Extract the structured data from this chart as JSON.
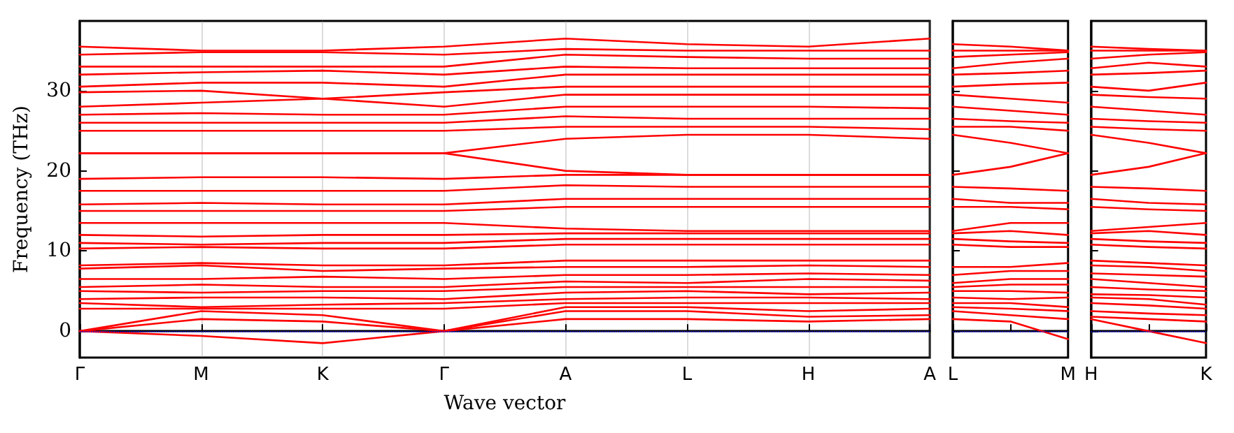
{
  "chart_data": [
    {
      "type": "line",
      "xlabel": "Wave vector",
      "ylabel": "Frequency (THz)",
      "color": "#ff0000",
      "marker": "none",
      "line_style": "solid",
      "grid": "x",
      "categories": [
        "Γ",
        "M",
        "K",
        "Γ",
        "A",
        "L",
        "H",
        "A"
      ],
      "ylim": [
        -3.3,
        38.7
      ],
      "yticks": [
        0,
        10,
        20,
        30
      ],
      "ref_lines": [
        {
          "axis": "y",
          "value": 0,
          "color": "#0000ff",
          "line_style": "dotted"
        }
      ],
      "series": [
        {
          "values": [
            0,
            -0.6,
            -1.5,
            0,
            1.5,
            1.5,
            1.2,
            1.5
          ]
        },
        {
          "values": [
            0,
            1.5,
            1.2,
            0,
            2.5,
            2.5,
            1.8,
            2.0
          ]
        },
        {
          "values": [
            0,
            2.5,
            2.0,
            0,
            3.0,
            3.0,
            2.5,
            2.8
          ]
        },
        {
          "values": [
            2.8,
            2.8,
            2.8,
            2.8,
            3.5,
            3.5,
            3.5,
            3.5
          ]
        },
        {
          "values": [
            3.5,
            3.0,
            3.3,
            3.5,
            4.0,
            4.2,
            4.2,
            4.0
          ]
        },
        {
          "values": [
            4.0,
            4.2,
            4.2,
            4.0,
            4.8,
            5.0,
            4.6,
            4.8
          ]
        },
        {
          "values": [
            5.0,
            4.8,
            5.0,
            5.0,
            5.5,
            5.5,
            5.5,
            5.5
          ]
        },
        {
          "values": [
            5.5,
            5.8,
            5.5,
            5.5,
            6.2,
            6.0,
            6.5,
            6.3
          ]
        },
        {
          "values": [
            6.5,
            6.5,
            6.8,
            6.5,
            7.0,
            7.0,
            7.2,
            7.0
          ]
        },
        {
          "values": [
            7.8,
            8.2,
            7.5,
            7.8,
            8.0,
            8.0,
            8.2,
            8.0
          ]
        },
        {
          "values": [
            8.2,
            8.5,
            8.2,
            8.2,
            8.8,
            8.8,
            8.8,
            8.8
          ]
        },
        {
          "values": [
            10.3,
            10.5,
            10.3,
            10.3,
            10.8,
            10.8,
            10.8,
            10.8
          ]
        },
        {
          "values": [
            11,
            10.8,
            11,
            11,
            11.5,
            11.5,
            11.5,
            11.5
          ]
        },
        {
          "values": [
            12,
            11.8,
            12,
            12,
            12.2,
            12.2,
            12.2,
            12.2
          ]
        },
        {
          "values": [
            13.5,
            13.5,
            13.5,
            13.5,
            12.8,
            12.5,
            12.5,
            12.5
          ]
        },
        {
          "values": [
            15,
            15,
            15,
            15,
            15.5,
            15.5,
            15.5,
            15.5
          ]
        },
        {
          "values": [
            15.8,
            16,
            15.8,
            15.8,
            16.5,
            16.5,
            16.5,
            16.5
          ]
        },
        {
          "values": [
            17.5,
            17.5,
            17.5,
            17.5,
            18.2,
            18,
            18,
            18
          ]
        },
        {
          "values": [
            19,
            19.2,
            19.2,
            19,
            19.5,
            19.5,
            19.5,
            19.5
          ]
        },
        {
          "values": [
            22.2,
            22.2,
            22.2,
            22.2,
            20,
            19.5,
            19.5,
            19.5
          ]
        },
        {
          "values": [
            22.2,
            22.2,
            22.2,
            22.2,
            24,
            24.5,
            24.5,
            24
          ]
        },
        {
          "values": [
            25,
            25,
            25,
            25,
            25.5,
            25.5,
            25.5,
            25.2
          ]
        },
        {
          "values": [
            26,
            26,
            26,
            26,
            26.8,
            26.5,
            26.5,
            26.5
          ]
        },
        {
          "values": [
            27,
            27.2,
            27,
            27,
            28,
            28,
            28,
            27.8
          ]
        },
        {
          "values": [
            28,
            28.5,
            29,
            28,
            29.5,
            29.5,
            29.5,
            29.5
          ]
        },
        {
          "values": [
            29.8,
            30,
            29,
            29.8,
            30.5,
            30.5,
            30.5,
            30.5
          ]
        },
        {
          "values": [
            30.5,
            31,
            31,
            30.5,
            32,
            32,
            32,
            32
          ]
        },
        {
          "values": [
            32,
            32.3,
            32.5,
            32,
            33,
            32.8,
            32.8,
            32.8
          ]
        },
        {
          "values": [
            33,
            33,
            33,
            33,
            34.5,
            34.2,
            34,
            34
          ]
        },
        {
          "values": [
            34.5,
            34.8,
            34.8,
            34.5,
            35.2,
            35,
            35,
            35
          ]
        },
        {
          "values": [
            35.5,
            35,
            35,
            35.5,
            36.5,
            35.8,
            35.5,
            36.5
          ]
        }
      ]
    },
    {
      "type": "line",
      "color": "#ff0000",
      "marker": "none",
      "line_style": "solid",
      "tick_labels": "x",
      "categories": [
        "L",
        null,
        "M"
      ],
      "ylim": [
        -3.3,
        38.7
      ],
      "yticks": [
        0,
        10,
        20,
        30
      ],
      "ref_lines": [
        {
          "axis": "y",
          "value": 0,
          "color": "#0000ff",
          "line_style": "dotted"
        }
      ],
      "series": [
        {
          "values": [
            1.5,
            1.2,
            -1.0
          ]
        },
        {
          "values": [
            2.5,
            2.0,
            1.5
          ]
        },
        {
          "values": [
            3.0,
            2.8,
            2.5
          ]
        },
        {
          "values": [
            3.5,
            3.5,
            3.0
          ]
        },
        {
          "values": [
            4.2,
            4.0,
            4.2
          ]
        },
        {
          "values": [
            5.0,
            5.0,
            4.8
          ]
        },
        {
          "values": [
            5.5,
            5.8,
            5.8
          ]
        },
        {
          "values": [
            6.0,
            6.5,
            6.5
          ]
        },
        {
          "values": [
            7.0,
            7.5,
            7.5
          ]
        },
        {
          "values": [
            8.0,
            8.0,
            8.5
          ]
        },
        {
          "values": [
            10.8,
            10.5,
            10.5
          ]
        },
        {
          "values": [
            11.5,
            11.2,
            11.0
          ]
        },
        {
          "values": [
            12.2,
            12.5,
            12.0
          ]
        },
        {
          "values": [
            12.5,
            13.5,
            13.5
          ]
        },
        {
          "values": [
            15.5,
            15.5,
            15.2
          ]
        },
        {
          "values": [
            16.5,
            16.0,
            16.0
          ]
        },
        {
          "values": [
            18.0,
            17.8,
            17.5
          ]
        },
        {
          "values": [
            19.5,
            20.5,
            22.2
          ]
        },
        {
          "values": [
            24.5,
            23.5,
            22.2
          ]
        },
        {
          "values": [
            25.5,
            25.5,
            25.0
          ]
        },
        {
          "values": [
            26.5,
            26.2,
            26.0
          ]
        },
        {
          "values": [
            28.0,
            27.5,
            27.0
          ]
        },
        {
          "values": [
            29.5,
            29.0,
            28.5
          ]
        },
        {
          "values": [
            30.5,
            30.8,
            31.0
          ]
        },
        {
          "values": [
            32.0,
            32.2,
            32.5
          ]
        },
        {
          "values": [
            32.8,
            33.5,
            34.0
          ]
        },
        {
          "values": [
            34.2,
            34.5,
            34.8
          ]
        },
        {
          "values": [
            35.0,
            35.0,
            35.0
          ]
        },
        {
          "values": [
            35.8,
            35.5,
            35.0
          ]
        }
      ]
    },
    {
      "type": "line",
      "color": "#ff0000",
      "marker": "none",
      "line_style": "solid",
      "tick_labels": "x",
      "categories": [
        "H",
        null,
        "K"
      ],
      "ylim": [
        -3.3,
        38.7
      ],
      "yticks": [
        0,
        10,
        20,
        30
      ],
      "ref_lines": [
        {
          "axis": "y",
          "value": 0,
          "color": "#0000ff",
          "line_style": "dotted"
        }
      ],
      "series": [
        {
          "values": [
            1.5,
            0.0,
            -1.5
          ]
        },
        {
          "values": [
            1.8,
            1.5,
            1.2
          ]
        },
        {
          "values": [
            2.5,
            2.2,
            2.0
          ]
        },
        {
          "values": [
            3.5,
            3.2,
            2.8
          ]
        },
        {
          "values": [
            4.2,
            4.0,
            3.3
          ]
        },
        {
          "values": [
            4.6,
            4.5,
            4.2
          ]
        },
        {
          "values": [
            5.5,
            5.2,
            5.0
          ]
        },
        {
          "values": [
            6.5,
            6.0,
            5.5
          ]
        },
        {
          "values": [
            7.2,
            7.0,
            6.8
          ]
        },
        {
          "values": [
            8.2,
            8.0,
            7.5
          ]
        },
        {
          "values": [
            8.8,
            8.5,
            8.2
          ]
        },
        {
          "values": [
            10.8,
            10.5,
            10.3
          ]
        },
        {
          "values": [
            11.5,
            11.2,
            11.0
          ]
        },
        {
          "values": [
            12.2,
            12.5,
            12.0
          ]
        },
        {
          "values": [
            12.5,
            13.0,
            13.5
          ]
        },
        {
          "values": [
            15.5,
            15.2,
            15.0
          ]
        },
        {
          "values": [
            16.5,
            16.0,
            15.8
          ]
        },
        {
          "values": [
            18.0,
            17.8,
            17.5
          ]
        },
        {
          "values": [
            19.5,
            20.5,
            22.2
          ]
        },
        {
          "values": [
            24.5,
            23.5,
            22.2
          ]
        },
        {
          "values": [
            25.5,
            25.2,
            25.0
          ]
        },
        {
          "values": [
            26.5,
            26.2,
            26.0
          ]
        },
        {
          "values": [
            28.0,
            27.5,
            27.0
          ]
        },
        {
          "values": [
            29.5,
            29.2,
            29.0
          ]
        },
        {
          "values": [
            30.5,
            30.0,
            31.0
          ]
        },
        {
          "values": [
            32.0,
            32.2,
            32.5
          ]
        },
        {
          "values": [
            32.8,
            33.5,
            33.0
          ]
        },
        {
          "values": [
            34.0,
            34.5,
            34.8
          ]
        },
        {
          "values": [
            35.0,
            35.0,
            35.0
          ]
        },
        {
          "values": [
            35.5,
            35.2,
            35.0
          ]
        }
      ]
    }
  ]
}
